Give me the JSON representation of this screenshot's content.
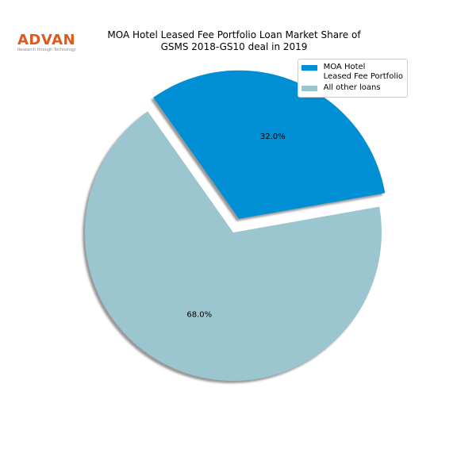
{
  "logo": {
    "name": "ADVAN",
    "tagline": "Research through Technology"
  },
  "chart_data": {
    "type": "pie",
    "title": "MOA Hotel Leased Fee Portfolio Loan Market Share of GSMS 2018-GS10 deal in 2019",
    "categories": [
      "MOA Hotel\nLeased Fee Portfolio",
      "All other loans"
    ],
    "values": [
      32.0,
      68.0
    ],
    "value_labels": [
      "32.0%",
      "68.0%"
    ],
    "colors": [
      "#008fd5",
      "#9bc6cf"
    ],
    "legend": "upper right"
  }
}
